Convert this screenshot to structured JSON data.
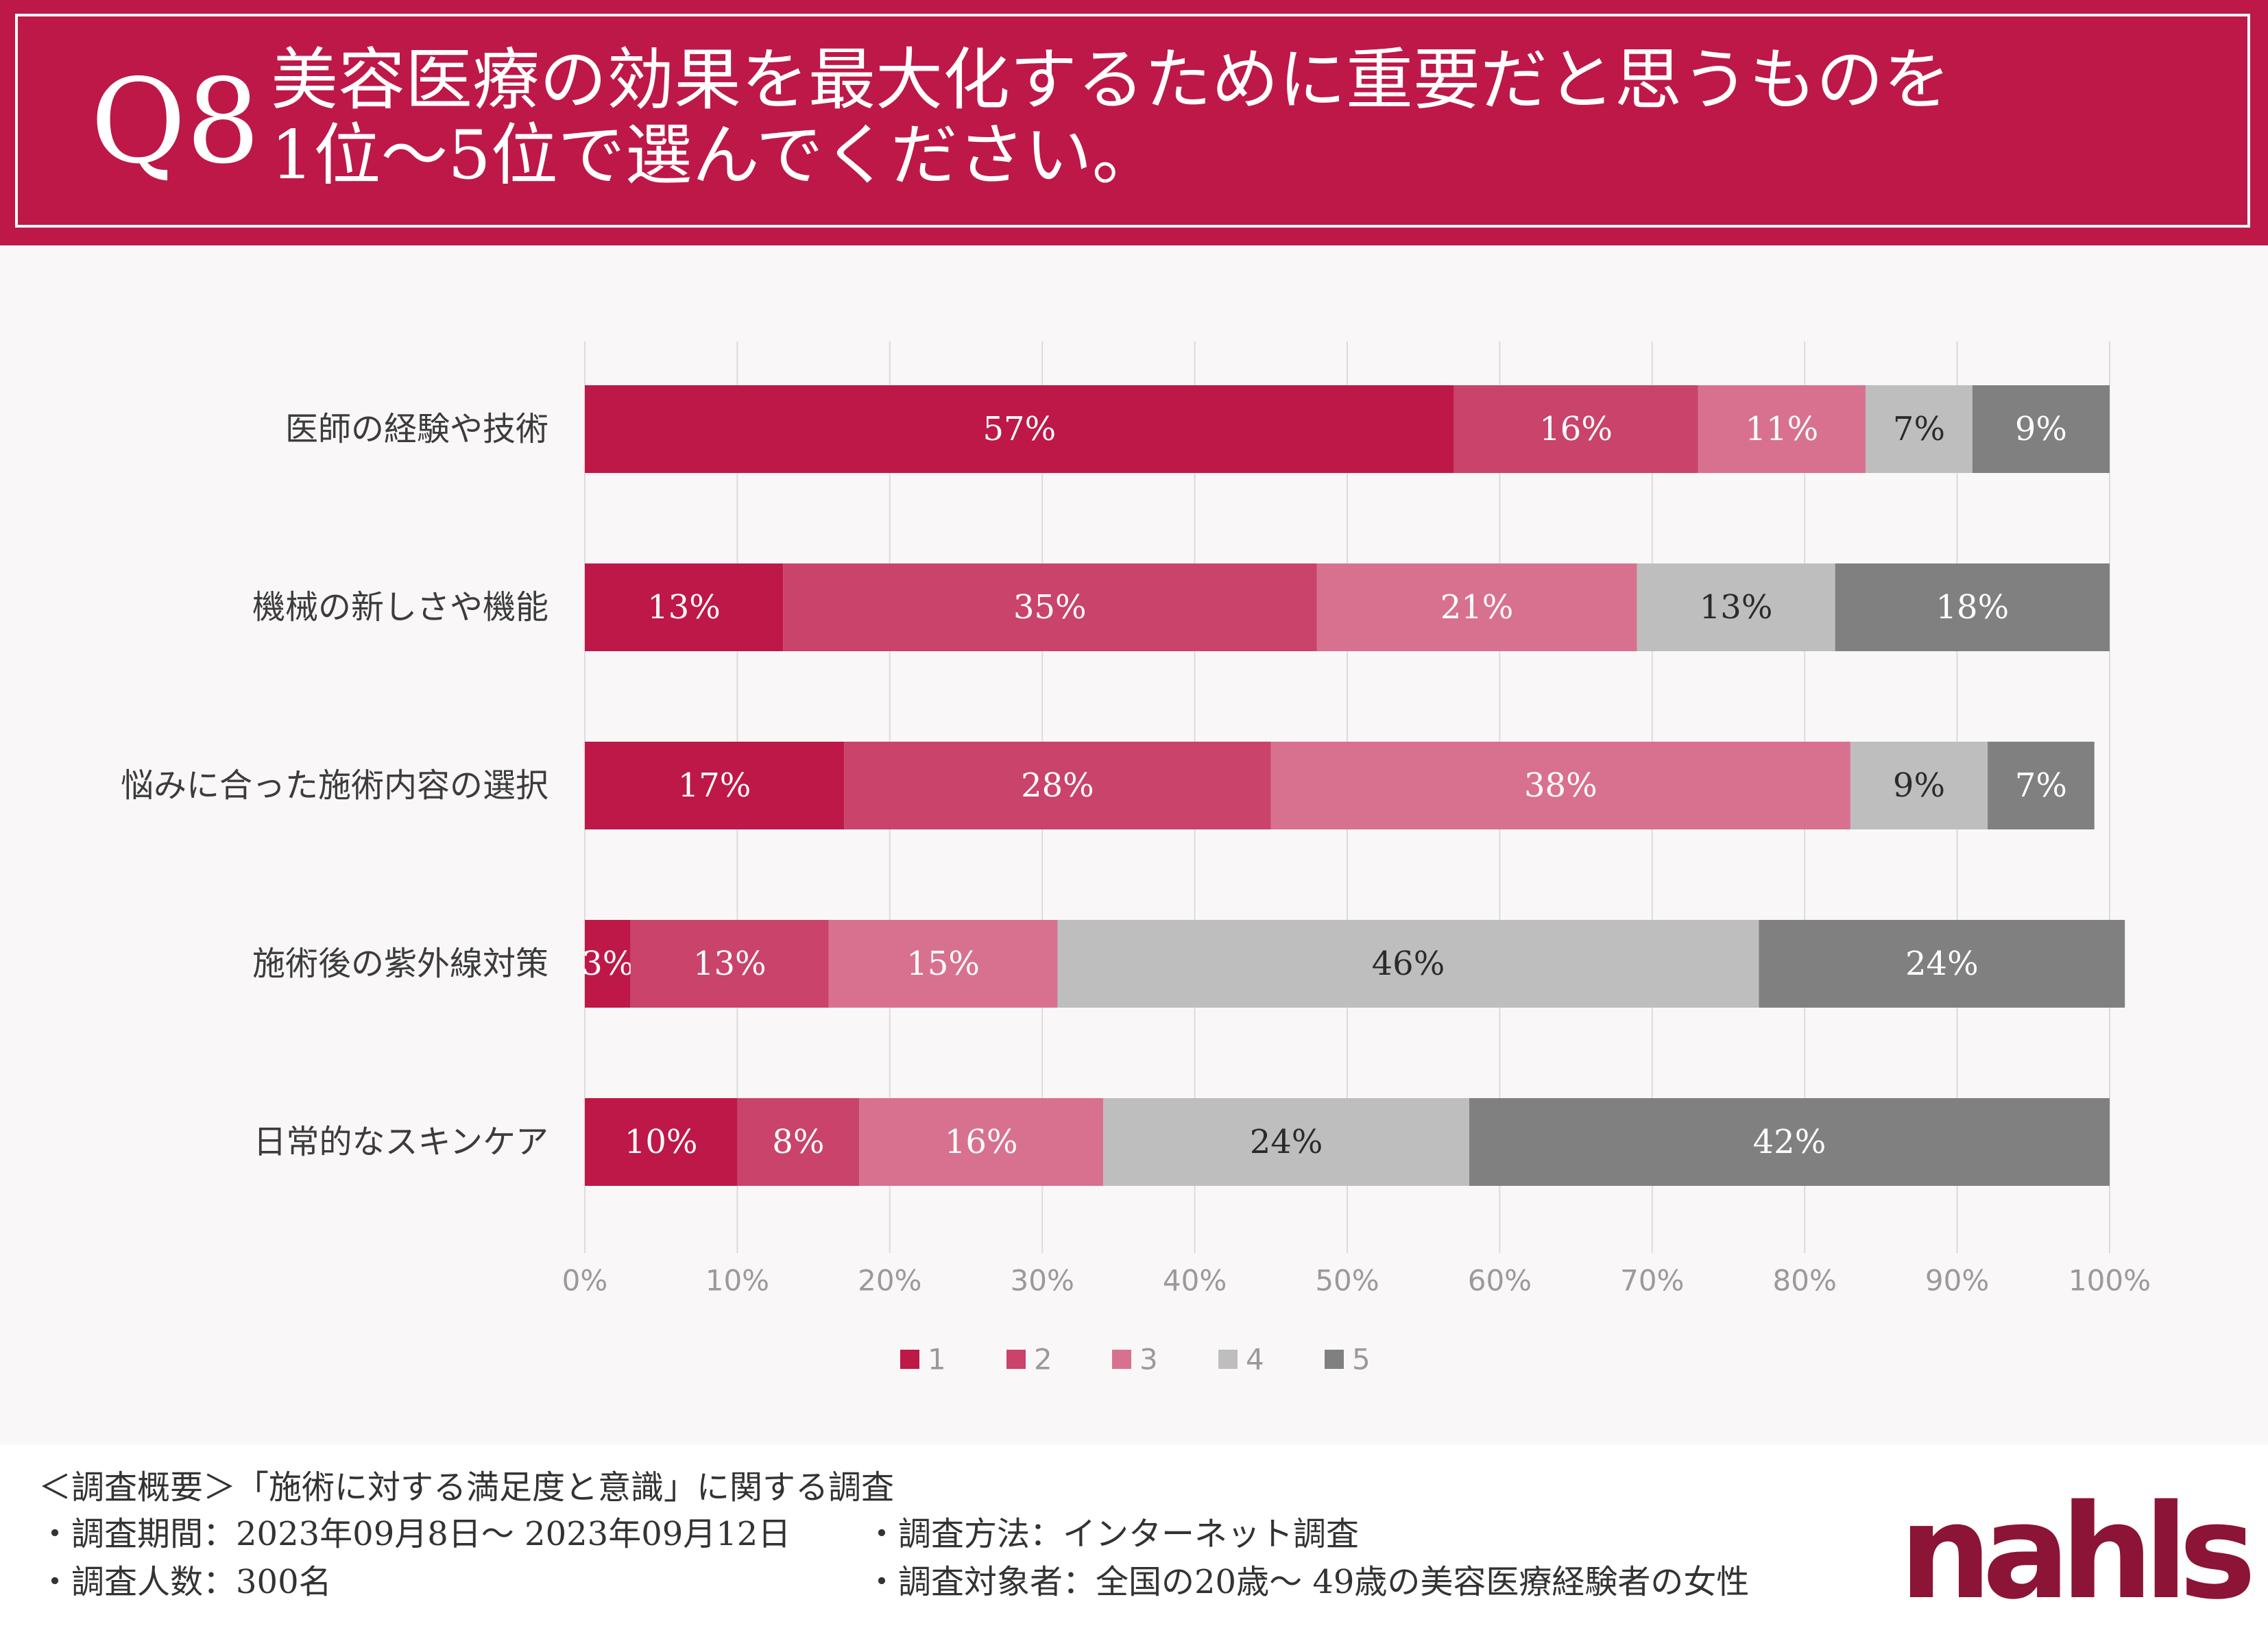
{
  "header": {
    "question_number": "Q8",
    "title_line1": "美容医療の効果を最大化するために重要だと思うものを",
    "title_line2": "1位〜5位で選んでください。"
  },
  "chart_data": {
    "type": "bar",
    "orientation": "horizontal-stacked-100",
    "categories": [
      "医師の経験や技術",
      "機械の新しさや機能",
      "悩みに合った施術内容の選択",
      "施術後の紫外線対策",
      "日常的なスキンケア"
    ],
    "series": [
      {
        "name": "1",
        "color": "#be1848",
        "values": [
          57,
          13,
          17,
          3,
          10
        ]
      },
      {
        "name": "2",
        "color": "#c9436a",
        "values": [
          16,
          35,
          28,
          13,
          8
        ]
      },
      {
        "name": "3",
        "color": "#d8718f",
        "values": [
          11,
          21,
          38,
          15,
          16
        ]
      },
      {
        "name": "4",
        "color": "#bebebe",
        "values": [
          7,
          13,
          9,
          46,
          24
        ]
      },
      {
        "name": "5",
        "color": "#808080",
        "values": [
          9,
          18,
          7,
          24,
          42
        ]
      }
    ],
    "xlim": [
      0,
      100
    ],
    "xticks": [
      "0%",
      "10%",
      "20%",
      "30%",
      "40%",
      "50%",
      "60%",
      "70%",
      "80%",
      "90%",
      "100%"
    ],
    "legend": "bottom",
    "grid": true
  },
  "footer": {
    "summary": "＜調査概要＞「施術に対する満足度と意識」に関する調査",
    "period": "・調査期間：2023年09月8日〜 2023年09月12日",
    "method": "・調査方法：インターネット調査",
    "count": "・調査人数：300名",
    "target": "・調査対象者：全国の20歳〜 49歳の美容医療経験者の女性"
  },
  "logo": {
    "text": "nahls"
  },
  "colors": {
    "brand": "#be1848",
    "logo": "#8c1436",
    "background": "#f9f7f8"
  }
}
